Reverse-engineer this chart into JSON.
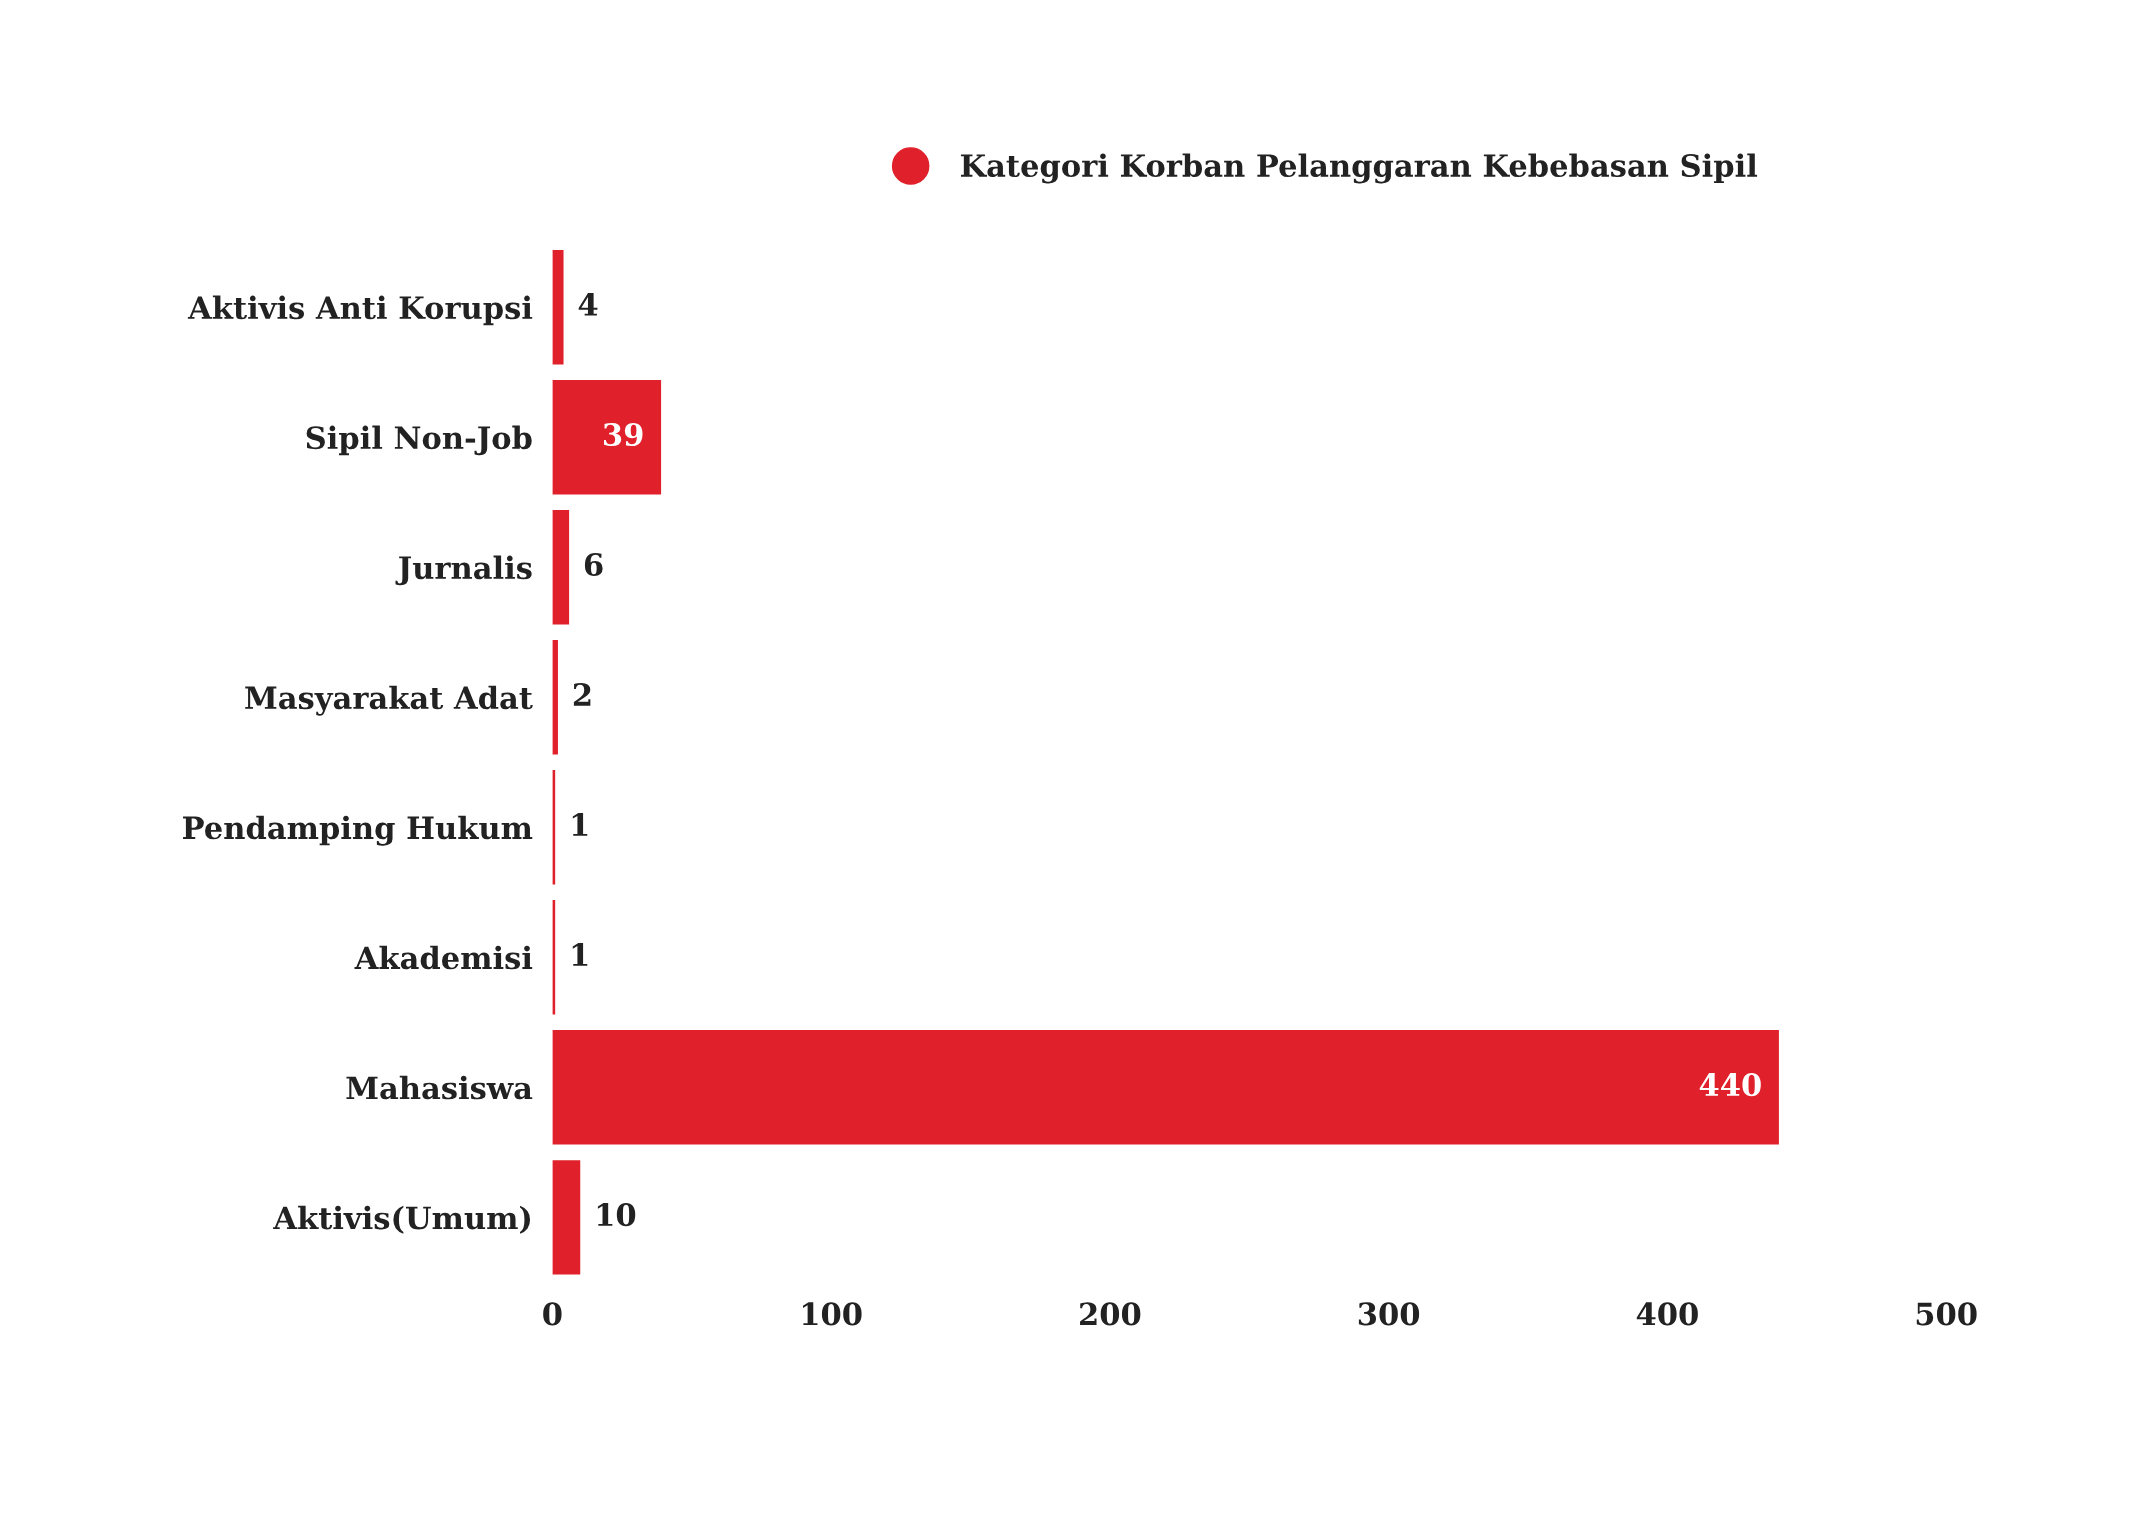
{
  "chart_data": {
    "type": "bar",
    "orientation": "horizontal",
    "categories": [
      "Aktivis Anti Korupsi",
      "Sipil Non-Job",
      "Jurnalis",
      "Masyarakat Adat",
      "Pendamping Hukum",
      "Akademisi",
      "Mahasiswa",
      "Aktivis(Umum)"
    ],
    "series": [
      {
        "name": "Kategori Korban Pelanggaran Kebebasan Sipil",
        "color": "#e0202a",
        "values": [
          4,
          39,
          6,
          2,
          1,
          1,
          440,
          10
        ]
      }
    ],
    "xlim": [
      0,
      500
    ],
    "xticks": [
      0,
      100,
      200,
      300,
      400,
      500
    ],
    "data_labels": true,
    "legend": "top",
    "grid": false
  }
}
